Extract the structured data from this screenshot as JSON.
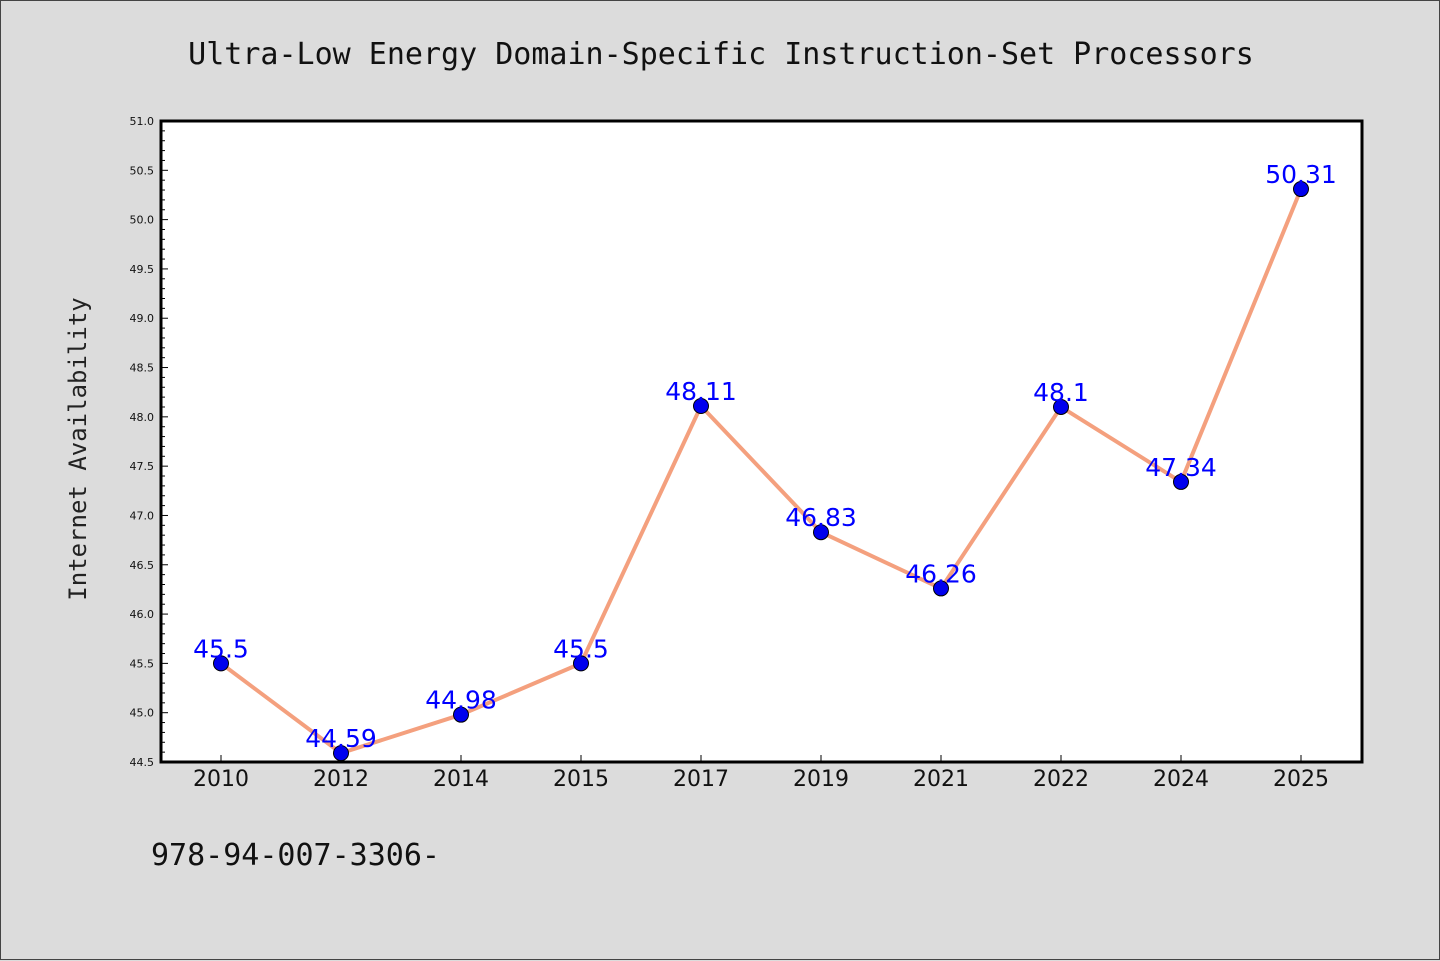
{
  "chart_data": {
    "type": "line",
    "title": "Ultra-Low Energy Domain-Specific Instruction-Set Processors",
    "xlabel": "",
    "ylabel": "Internet Availability",
    "categories": [
      "2010",
      "2012",
      "2014",
      "2015",
      "2017",
      "2019",
      "2021",
      "2022",
      "2024",
      "2025"
    ],
    "series": [
      {
        "values": [
          45.5,
          44.59,
          44.98,
          45.5,
          48.11,
          46.83,
          46.26,
          48.1,
          47.34,
          50.31
        ],
        "labels": [
          "45.5",
          "44.59",
          "44.98",
          "45.5",
          "48.11",
          "46.83",
          "46.26",
          "48.1",
          "47.34",
          "50.31"
        ],
        "line_color": "#f4a07e",
        "marker_color": "#0000ee"
      }
    ],
    "ylim": [
      44.5,
      51.0
    ],
    "yticks": [
      "44.5",
      "45.0",
      "45.5",
      "46.0",
      "46.5",
      "47.0",
      "47.5",
      "48.0",
      "48.5",
      "49.0",
      "49.5",
      "50.0",
      "50.5",
      "51.0"
    ],
    "grid": false,
    "label_color": "#0000ff"
  },
  "footnote": "978-94-007-3306-"
}
